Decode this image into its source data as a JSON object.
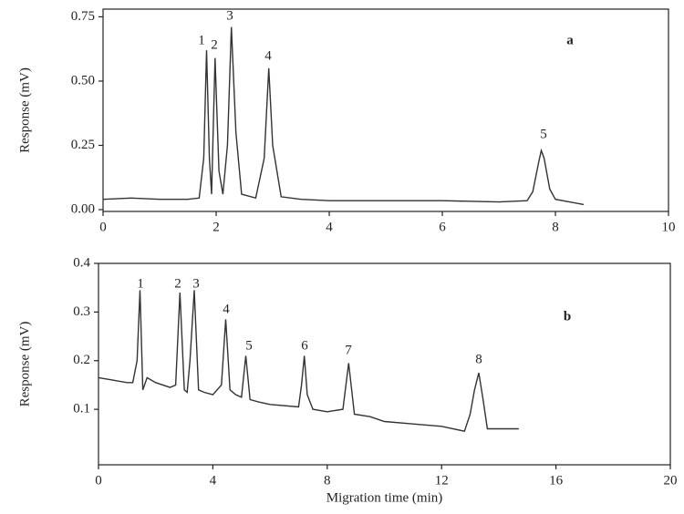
{
  "chart_data": [
    {
      "type": "line",
      "label": "a",
      "ylabel": "Response (mV)",
      "x": [
        0,
        0.5,
        1,
        1.5,
        1.7,
        1.78,
        1.83,
        1.88,
        1.92,
        1.98,
        2.05,
        2.12,
        2.2,
        2.27,
        2.35,
        2.45,
        2.7,
        2.85,
        2.93,
        3.0,
        3.15,
        3.5,
        4,
        5,
        6,
        7,
        7.5,
        7.6,
        7.7,
        7.75,
        7.8,
        7.9,
        8.0,
        8.5
      ],
      "series": [
        {
          "color": "#333333",
          "values": [
            0.04,
            0.045,
            0.04,
            0.04,
            0.045,
            0.2,
            0.62,
            0.2,
            0.06,
            0.59,
            0.15,
            0.06,
            0.25,
            0.71,
            0.3,
            0.06,
            0.045,
            0.2,
            0.55,
            0.25,
            0.05,
            0.04,
            0.035,
            0.035,
            0.035,
            0.03,
            0.035,
            0.07,
            0.18,
            0.23,
            0.2,
            0.08,
            0.04,
            0.02
          ]
        }
      ],
      "peak_labels": [
        "1",
        "2",
        "3",
        "4",
        "5"
      ],
      "xlim": [
        0,
        10
      ],
      "xticks": [
        0,
        2,
        4,
        6,
        8,
        10
      ],
      "ylim": [
        -0.007,
        0.78
      ],
      "yticks": [
        {
          "value": 0,
          "label": "0.00"
        },
        0.25,
        {
          "value": 0.5,
          "label": "0.50"
        },
        0.75
      ]
    },
    {
      "type": "line",
      "label": "b",
      "ylabel": "Response (mV)",
      "xlabel": "Migration time (min)",
      "x": [
        0,
        0.5,
        1,
        1.2,
        1.35,
        1.45,
        1.55,
        1.7,
        2,
        2.5,
        2.7,
        2.85,
        3.0,
        3.1,
        3.2,
        3.35,
        3.5,
        3.7,
        4,
        4.3,
        4.45,
        4.6,
        4.8,
        5.0,
        5.15,
        5.3,
        5.6,
        6,
        7,
        7.1,
        7.2,
        7.3,
        7.5,
        8,
        8.55,
        8.75,
        8.95,
        9.5,
        10,
        11,
        12,
        12.8,
        13.0,
        13.15,
        13.3,
        13.45,
        13.6,
        14,
        14.7
      ],
      "series": [
        {
          "color": "#333333",
          "values": [
            0.165,
            0.16,
            0.155,
            0.155,
            0.2,
            0.345,
            0.14,
            0.165,
            0.155,
            0.145,
            0.15,
            0.34,
            0.14,
            0.135,
            0.2,
            0.345,
            0.14,
            0.135,
            0.13,
            0.15,
            0.285,
            0.14,
            0.13,
            0.125,
            0.21,
            0.12,
            0.115,
            0.11,
            0.105,
            0.15,
            0.21,
            0.13,
            0.1,
            0.095,
            0.1,
            0.195,
            0.09,
            0.085,
            0.075,
            0.07,
            0.065,
            0.055,
            0.09,
            0.14,
            0.175,
            0.12,
            0.06,
            0.06,
            0.06
          ]
        }
      ],
      "peak_labels": [
        "1",
        "2",
        "3",
        "4",
        "5",
        "6",
        "7",
        "8"
      ],
      "xlim": [
        0,
        20
      ],
      "xticks": [
        0,
        4,
        8,
        12,
        16,
        20
      ],
      "ylim": [
        -0.014,
        0.4
      ],
      "yticks": [
        0.1,
        0.2,
        0.3,
        0.4
      ]
    }
  ]
}
